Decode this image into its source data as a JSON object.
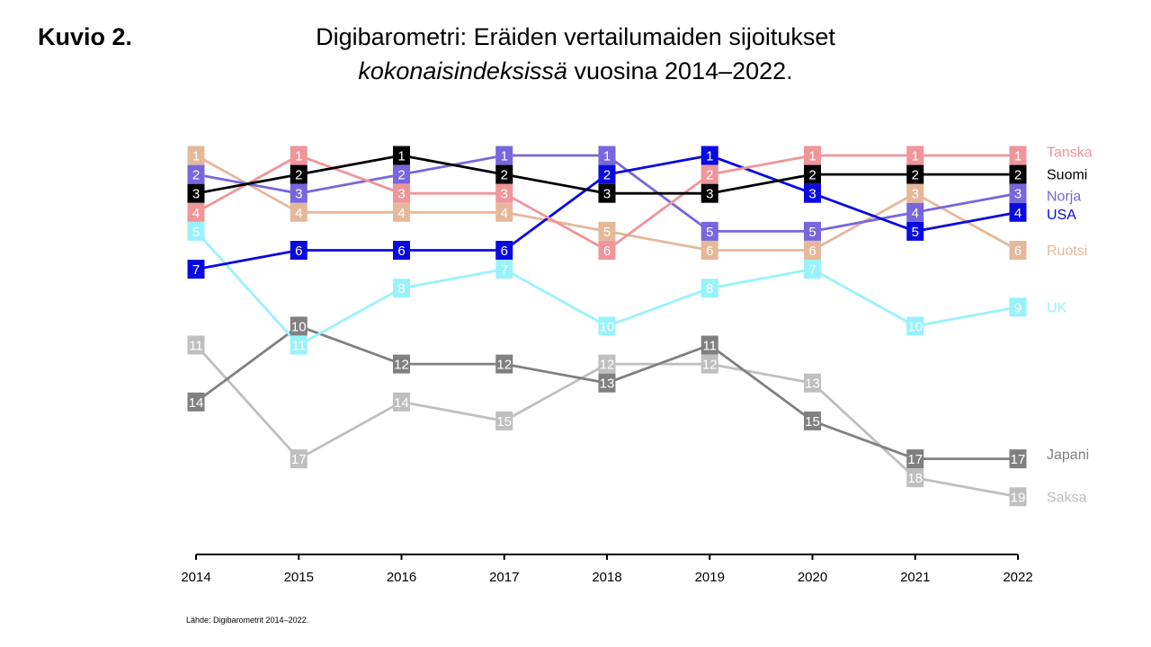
{
  "figure_label": "Kuvio 2.",
  "title_line1": "Digibarometri: Eräiden vertailumaiden sijoitukset",
  "title_line2_italic": "kokonaisindeksissä",
  "title_line2_rest": " vuosina 2014–2022.",
  "source": "Lähde: Digibarometrit 2014–2022.",
  "chart_data": {
    "type": "line",
    "title": "Digibarometri: Eräiden vertailumaiden sijoitukset kokonaisindeksissä vuosina 2014–2022.",
    "xlabel": "",
    "ylabel": "",
    "x": [
      "2014",
      "2015",
      "2016",
      "2017",
      "2018",
      "2019",
      "2020",
      "2021",
      "2022"
    ],
    "y_inverted": true,
    "ylim": [
      0,
      21
    ],
    "grid": false,
    "legend": "right, labels at line ends",
    "series": [
      {
        "name": "Saksa",
        "color": "#bfbfbf",
        "text_color": "#ffffff",
        "values": [
          11,
          17,
          14,
          15,
          12,
          12,
          13,
          18,
          19
        ]
      },
      {
        "name": "Japani",
        "color": "#808080",
        "text_color": "#ffffff",
        "values": [
          14,
          10,
          12,
          12,
          13,
          11,
          15,
          17,
          17
        ]
      },
      {
        "name": "UK",
        "color": "#99f2fb",
        "text_color": "#ffffff",
        "values": [
          5,
          11,
          8,
          7,
          10,
          8,
          7,
          10,
          9
        ]
      },
      {
        "name": "Ruotsi",
        "color": "#e5b89a",
        "text_color": "#ffffff",
        "values": [
          1,
          4,
          4,
          4,
          5,
          6,
          6,
          3,
          6
        ]
      },
      {
        "name": "Norja",
        "color": "#7766dd",
        "text_color": "#ffffff",
        "values": [
          2,
          3,
          2,
          1,
          1,
          5,
          5,
          4,
          3
        ]
      },
      {
        "name": "USA",
        "color": "#0a0ae0",
        "text_color": "#ffffff",
        "values": [
          7,
          6,
          6,
          6,
          2,
          1,
          3,
          5,
          4
        ]
      },
      {
        "name": "Tanska",
        "color": "#f0959a",
        "text_color": "#ffffff",
        "values": [
          4,
          1,
          3,
          3,
          6,
          2,
          1,
          1,
          1
        ]
      },
      {
        "name": "Suomi",
        "color": "#000000",
        "text_color": "#ffffff",
        "values": [
          3,
          2,
          1,
          2,
          3,
          3,
          2,
          2,
          2
        ]
      }
    ],
    "legend_text_colors": {
      "Tanska": "#f0959a",
      "Suomi": "#000000",
      "Norja": "#7766dd",
      "USA": "#0a0ae0",
      "Ruotsi": "#e5b89a",
      "UK": "#99f2fb",
      "Japani": "#808080",
      "Saksa": "#bfbfbf"
    }
  }
}
